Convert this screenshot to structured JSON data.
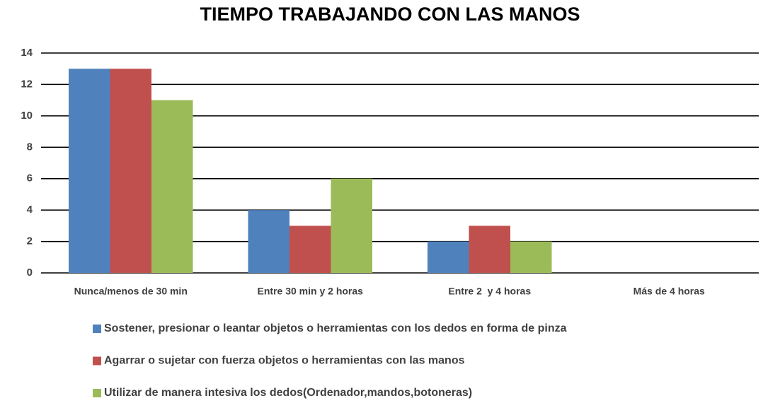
{
  "chart_data": {
    "type": "bar",
    "title": "TIEMPO TRABAJANDO CON LAS MANOS",
    "categories": [
      "Nunca/menos de 30 min",
      "Entre 30 min y 2 horas",
      "Entre 2  y 4 horas",
      "Más de 4 horas"
    ],
    "series": [
      {
        "name": "Sostener, presionar o leantar objetos o herramientas con los dedos en forma de pinza",
        "color": "#4f81bd",
        "values": [
          13,
          4,
          2,
          0
        ]
      },
      {
        "name": "Agarrar o sujetar con fuerza objetos o herramientas con las manos",
        "color": "#c0504d",
        "values": [
          13,
          3,
          3,
          0
        ]
      },
      {
        "name": "Utilizar de manera intesiva los dedos(Ordenador,mandos,botoneras)",
        "color": "#9bbb59",
        "values": [
          11,
          6,
          2,
          0
        ]
      }
    ],
    "ylim": [
      0,
      14
    ],
    "yticks": [
      0,
      2,
      4,
      6,
      8,
      10,
      12,
      14
    ],
    "grid": true,
    "legend": "bottom"
  }
}
